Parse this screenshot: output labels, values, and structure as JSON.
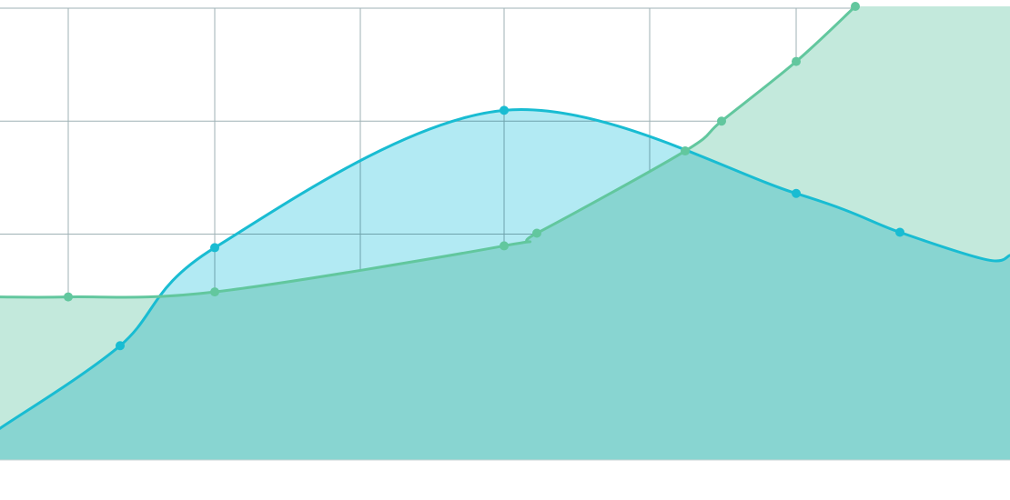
{
  "chart_data": {
    "type": "area",
    "title": "",
    "xlabel": "",
    "ylabel": "",
    "xlim": [
      0,
      1110
    ],
    "ylim": [
      0,
      100
    ],
    "grid": true,
    "legend": "none",
    "x_grid": [
      75,
      236,
      396,
      554,
      714,
      875,
      1034
    ],
    "y_grid": [
      25,
      50,
      75
    ],
    "series": [
      {
        "color": "#19bcd2",
        "fill": "#b2eaf3",
        "points": [
          {
            "x": 0,
            "y": 7
          },
          {
            "x": 132,
            "y": 25.3
          },
          {
            "x": 236,
            "y": 47
          },
          {
            "x": 554,
            "y": 77.4
          },
          {
            "x": 875,
            "y": 59
          },
          {
            "x": 989,
            "y": 50.4
          },
          {
            "x": 1085,
            "y": 44.3
          },
          {
            "x": 1110,
            "y": 45.3
          }
        ],
        "markers": [
          1,
          2,
          3,
          4,
          5
        ]
      },
      {
        "color": "#62c79e",
        "fill": "#c3e9dc",
        "points": [
          {
            "x": 0,
            "y": 36.1
          },
          {
            "x": 75,
            "y": 36.1
          },
          {
            "x": 236,
            "y": 37.2
          },
          {
            "x": 554,
            "y": 47.4
          },
          {
            "x": 590,
            "y": 50.2
          },
          {
            "x": 753,
            "y": 68.4
          },
          {
            "x": 793,
            "y": 75
          },
          {
            "x": 875,
            "y": 88.2
          },
          {
            "x": 940,
            "y": 100.4
          }
        ],
        "markers": [
          1,
          2,
          3,
          4,
          5,
          6,
          7,
          8
        ]
      }
    ]
  }
}
